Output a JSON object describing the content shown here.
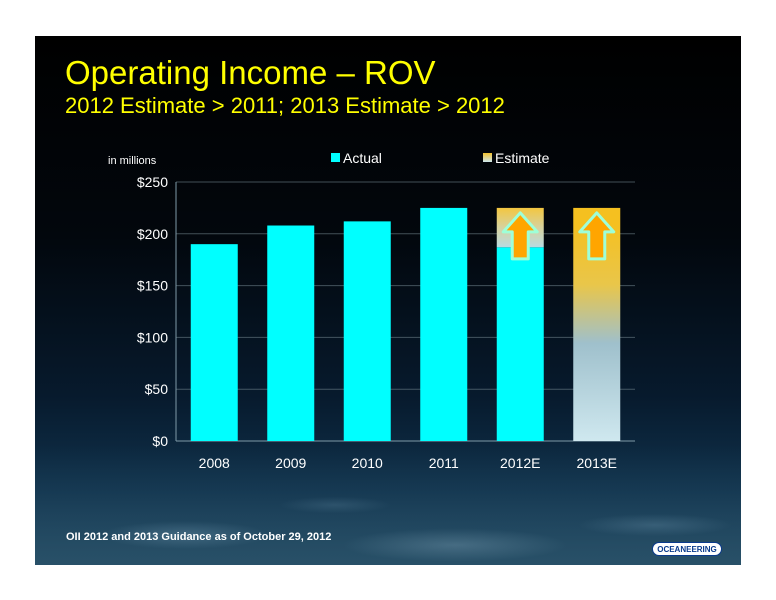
{
  "slide": {
    "title": "Operating Income – ROV",
    "subtitle": "2012 Estimate > 2011; 2013 Estimate > 2012",
    "footnote": "OII 2012 and 2013 Guidance as of October 29, 2012",
    "logo_text": "OCEANEERING"
  },
  "colors": {
    "title": "#ffff00",
    "actual_bar": "#00ffff",
    "estimate_top": "#f2c22e",
    "estimate_bottom": "#cde7ee",
    "arrow_fill": "#ffa500",
    "arrow_stroke": "#9effd8"
  },
  "chart_data": {
    "type": "bar",
    "unit_label": "in millions",
    "categories": [
      "2008",
      "2009",
      "2010",
      "2011",
      "2012E",
      "2013E"
    ],
    "series": [
      {
        "name": "Actual",
        "values": [
          190,
          208,
          212,
          225,
          187,
          0
        ]
      },
      {
        "name": "Estimate",
        "values": [
          0,
          0,
          0,
          0,
          38,
          225
        ]
      }
    ],
    "estimate_arrows": [
      "2012E",
      "2013E"
    ],
    "y_ticks": [
      "$0",
      "$50",
      "$100",
      "$150",
      "$200",
      "$250"
    ],
    "y_tick_values": [
      0,
      50,
      100,
      150,
      200,
      250
    ],
    "ylim": [
      0,
      250
    ],
    "legend_position": "top",
    "grid": true
  }
}
